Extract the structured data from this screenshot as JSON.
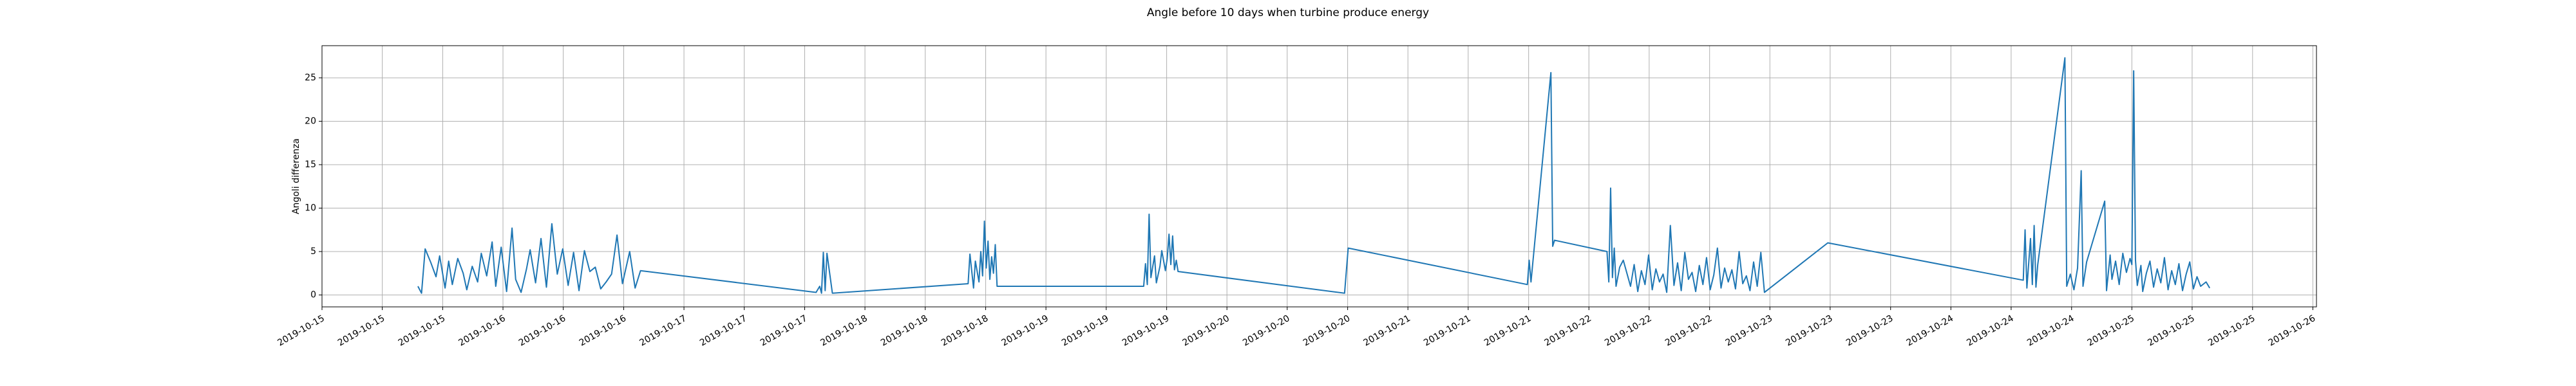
{
  "chart_data": {
    "type": "line",
    "title": "Angle before 10 days when turbine produce energy",
    "y_label": "Angoli differenza",
    "color": "#1f77b4",
    "grid": true,
    "xlim": [
      15.0,
      26.02
    ],
    "ylim": [
      -1.37,
      28.7
    ],
    "yticks": [
      0,
      5,
      10,
      15,
      20,
      25
    ],
    "xticks": [
      {
        "value": 15,
        "label": "2019-10-15"
      },
      {
        "value": 15.333,
        "label": "2019-10-15"
      },
      {
        "value": 15.667,
        "label": "2019-10-15"
      },
      {
        "value": 16,
        "label": "2019-10-16"
      },
      {
        "value": 16.333,
        "label": "2019-10-16"
      },
      {
        "value": 16.667,
        "label": "2019-10-16"
      },
      {
        "value": 17,
        "label": "2019-10-17"
      },
      {
        "value": 17.333,
        "label": "2019-10-17"
      },
      {
        "value": 17.667,
        "label": "2019-10-17"
      },
      {
        "value": 18,
        "label": "2019-10-18"
      },
      {
        "value": 18.333,
        "label": "2019-10-18"
      },
      {
        "value": 18.667,
        "label": "2019-10-18"
      },
      {
        "value": 19,
        "label": "2019-10-19"
      },
      {
        "value": 19.333,
        "label": "2019-10-19"
      },
      {
        "value": 19.667,
        "label": "2019-10-19"
      },
      {
        "value": 20,
        "label": "2019-10-20"
      },
      {
        "value": 20.333,
        "label": "2019-10-20"
      },
      {
        "value": 20.667,
        "label": "2019-10-20"
      },
      {
        "value": 21,
        "label": "2019-10-21"
      },
      {
        "value": 21.333,
        "label": "2019-10-21"
      },
      {
        "value": 21.667,
        "label": "2019-10-21"
      },
      {
        "value": 22,
        "label": "2019-10-22"
      },
      {
        "value": 22.333,
        "label": "2019-10-22"
      },
      {
        "value": 22.667,
        "label": "2019-10-22"
      },
      {
        "value": 23,
        "label": "2019-10-23"
      },
      {
        "value": 23.333,
        "label": "2019-10-23"
      },
      {
        "value": 23.667,
        "label": "2019-10-23"
      },
      {
        "value": 24,
        "label": "2019-10-24"
      },
      {
        "value": 24.333,
        "label": "2019-10-24"
      },
      {
        "value": 24.667,
        "label": "2019-10-24"
      },
      {
        "value": 25,
        "label": "2019-10-25"
      },
      {
        "value": 25.333,
        "label": "2019-10-25"
      },
      {
        "value": 25.667,
        "label": "2019-10-25"
      },
      {
        "value": 26,
        "label": "2019-10-26"
      }
    ],
    "x": [
      15.53,
      15.55,
      15.57,
      15.6,
      15.63,
      15.65,
      15.68,
      15.7,
      15.72,
      15.75,
      15.78,
      15.8,
      15.83,
      15.86,
      15.88,
      15.91,
      15.94,
      15.96,
      15.99,
      16.02,
      16.05,
      16.07,
      16.1,
      16.13,
      16.15,
      16.18,
      16.21,
      16.24,
      16.27,
      16.3,
      16.33,
      16.36,
      16.39,
      16.42,
      16.45,
      16.48,
      16.51,
      16.54,
      16.57,
      16.6,
      16.63,
      16.66,
      16.7,
      16.73,
      16.76,
      17.73,
      17.75,
      17.76,
      17.77,
      17.78,
      17.79,
      17.82,
      18.57,
      18.58,
      18.6,
      18.61,
      18.63,
      18.64,
      18.65,
      18.66,
      18.67,
      18.68,
      18.69,
      18.7,
      18.71,
      18.72,
      18.73,
      19.54,
      19.55,
      19.56,
      19.57,
      19.58,
      19.6,
      19.61,
      19.63,
      19.64,
      19.66,
      19.67,
      19.68,
      19.69,
      19.7,
      19.71,
      19.72,
      19.73,
      20.65,
      20.67,
      21.66,
      21.67,
      21.68,
      21.79,
      21.8,
      21.81,
      22.1,
      22.11,
      22.12,
      22.13,
      22.14,
      22.15,
      22.17,
      22.19,
      22.21,
      22.23,
      22.25,
      22.27,
      22.29,
      22.31,
      22.33,
      22.35,
      22.37,
      22.39,
      22.41,
      22.43,
      22.45,
      22.47,
      22.49,
      22.51,
      22.53,
      22.55,
      22.57,
      22.59,
      22.61,
      22.63,
      22.65,
      22.67,
      22.69,
      22.71,
      22.73,
      22.75,
      22.77,
      22.79,
      22.81,
      22.83,
      22.85,
      22.87,
      22.89,
      22.91,
      22.93,
      22.95,
      22.97,
      23.32,
      24.4,
      24.41,
      24.42,
      24.44,
      24.45,
      24.46,
      24.47,
      24.48,
      24.63,
      24.64,
      24.66,
      24.68,
      24.7,
      24.72,
      24.73,
      24.75,
      24.77,
      24.85,
      24.86,
      24.88,
      24.89,
      24.91,
      24.93,
      24.95,
      24.97,
      24.99,
      25.0,
      25.01,
      25.02,
      25.03,
      25.05,
      25.06,
      25.08,
      25.1,
      25.12,
      25.14,
      25.16,
      25.18,
      25.2,
      25.22,
      25.24,
      25.26,
      25.28,
      25.3,
      25.32,
      25.34,
      25.36,
      25.38,
      25.41,
      25.43
    ],
    "values": [
      1.0,
      0.2,
      5.3,
      3.8,
      2.1,
      4.5,
      0.8,
      3.9,
      1.2,
      4.2,
      2.5,
      0.6,
      3.3,
      1.5,
      4.8,
      2.2,
      6.1,
      1.0,
      5.5,
      0.4,
      7.7,
      1.8,
      0.3,
      3.0,
      5.2,
      1.4,
      6.5,
      0.9,
      8.2,
      2.4,
      5.3,
      1.1,
      4.9,
      0.5,
      5.1,
      2.7,
      3.2,
      0.7,
      1.5,
      2.4,
      6.9,
      1.3,
      5.0,
      0.8,
      2.8,
      0.3,
      1.0,
      0.2,
      4.9,
      0.5,
      4.8,
      0.2,
      1.3,
      4.7,
      0.8,
      3.9,
      1.5,
      5.0,
      2.2,
      8.5,
      3.1,
      6.2,
      1.8,
      4.4,
      2.5,
      5.8,
      1.0,
      1.0,
      3.6,
      1.2,
      9.3,
      2.0,
      4.5,
      1.4,
      3.3,
      5.1,
      2.8,
      4.2,
      7.0,
      3.5,
      6.8,
      2.9,
      4.0,
      2.7,
      0.2,
      5.4,
      1.2,
      4.0,
      1.5,
      25.6,
      5.6,
      6.3,
      5.0,
      1.5,
      12.3,
      2.0,
      5.4,
      1.0,
      3.2,
      4.0,
      2.5,
      1.0,
      3.5,
      0.4,
      2.8,
      1.2,
      4.6,
      0.6,
      3.0,
      1.5,
      2.4,
      0.3,
      8.0,
      1.1,
      3.7,
      0.5,
      4.9,
      1.8,
      2.6,
      0.4,
      3.4,
      1.2,
      4.3,
      0.6,
      2.3,
      5.4,
      0.8,
      3.1,
      1.5,
      2.9,
      0.7,
      5.0,
      1.3,
      2.2,
      0.5,
      3.8,
      1.0,
      4.9,
      0.3,
      6.0,
      1.7,
      7.5,
      0.8,
      6.5,
      1.2,
      8.0,
      0.9,
      3.5,
      27.3,
      1.0,
      2.4,
      0.6,
      3.1,
      14.3,
      1.0,
      3.8,
      5.2,
      10.8,
      0.5,
      4.6,
      1.8,
      3.9,
      1.2,
      4.8,
      2.6,
      4.2,
      3.5,
      25.8,
      4.0,
      1.1,
      3.4,
      0.4,
      2.5,
      3.9,
      0.9,
      3.0,
      1.4,
      4.3,
      0.6,
      2.8,
      1.2,
      3.6,
      0.5,
      2.4,
      3.8,
      0.7,
      2.1,
      1.0,
      1.5,
      0.8
    ]
  }
}
